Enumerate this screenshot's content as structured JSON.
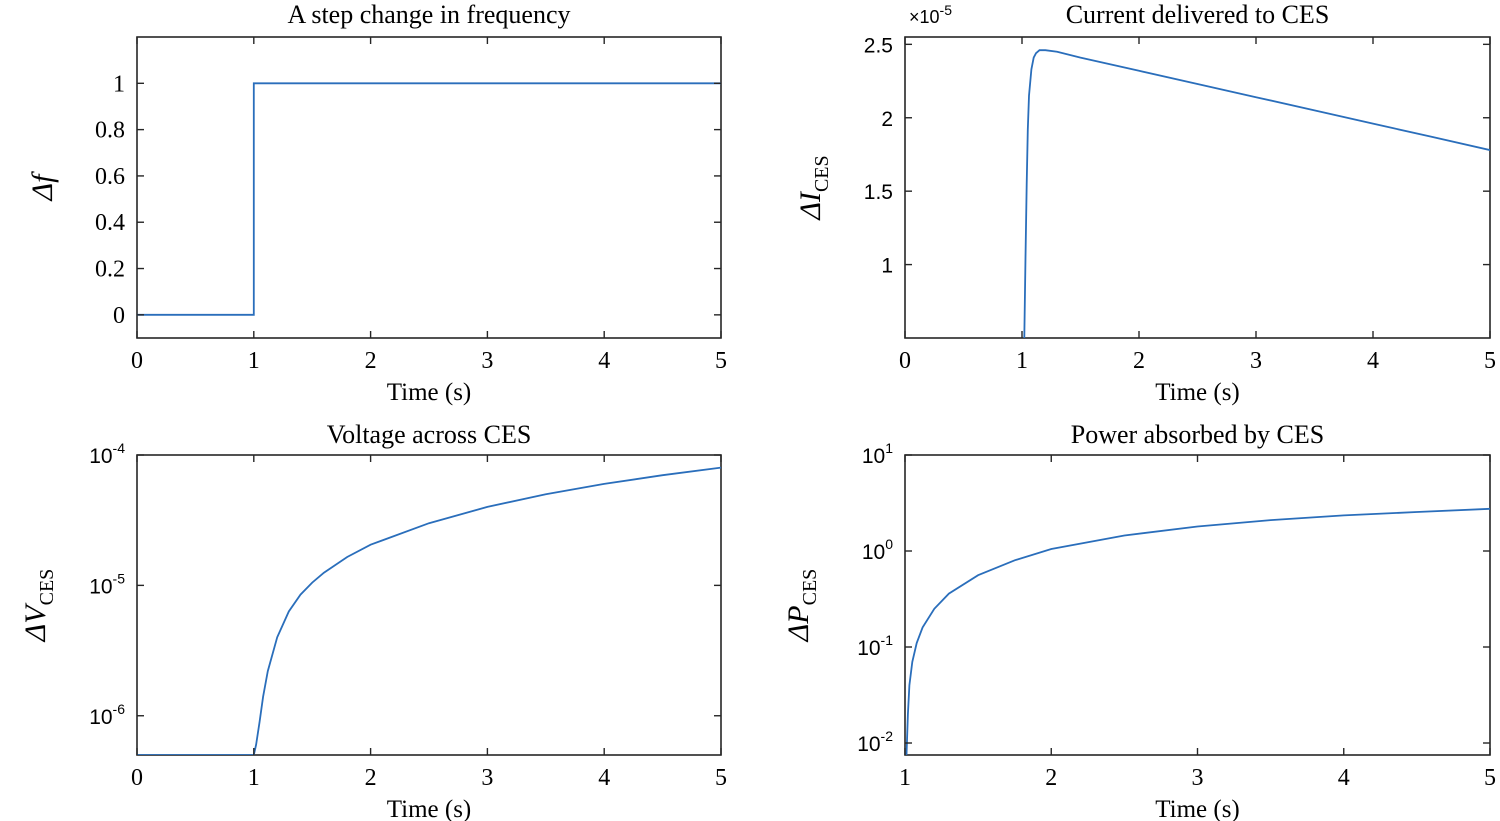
{
  "chart_data": [
    {
      "id": "freq",
      "type": "line",
      "title": "A step change in frequency",
      "xlabel": "Time (s)",
      "ylabel": "Δf",
      "ylabel_sub": "",
      "xscale": "linear",
      "yscale": "linear",
      "xlim": [
        0,
        5
      ],
      "ylim": [
        -0.1,
        1.2
      ],
      "xticks": [
        0,
        1,
        2,
        3,
        4,
        5
      ],
      "xtick_labels": [
        "0",
        "1",
        "2",
        "3",
        "4",
        "5"
      ],
      "yticks": [
        0,
        0.2,
        0.4,
        0.6,
        0.8,
        1
      ],
      "ytick_labels": [
        "0",
        "0.2",
        "0.4",
        "0.6",
        "0.8",
        "1"
      ],
      "scale_note": "",
      "tick_font": "serif",
      "series": [
        {
          "name": "Δf",
          "x": [
            0,
            1,
            1,
            5
          ],
          "y": [
            0,
            0,
            1,
            1
          ]
        }
      ]
    },
    {
      "id": "current",
      "type": "line",
      "title": "Current delivered to CES",
      "xlabel": "Time (s)",
      "ylabel": "ΔI",
      "ylabel_sub": "CES",
      "xscale": "linear",
      "yscale": "linear",
      "xlim": [
        0,
        5
      ],
      "ylim": [
        0.5,
        2.55
      ],
      "xticks": [
        0,
        1,
        2,
        3,
        4,
        5
      ],
      "xtick_labels": [
        "0",
        "1",
        "2",
        "3",
        "4",
        "5"
      ],
      "yticks": [
        1,
        1.5,
        2,
        2.5
      ],
      "ytick_labels": [
        "1",
        "1.5",
        "2",
        "2.5"
      ],
      "scale_note": "×10",
      "scale_exp": "-5",
      "tick_font": "sans",
      "series": [
        {
          "name": "ΔI CES (×10^-5)",
          "x": [
            1.02,
            1.03,
            1.04,
            1.05,
            1.06,
            1.08,
            1.1,
            1.12,
            1.15,
            1.2,
            1.3,
            1.5,
            2,
            2.5,
            3,
            3.5,
            4,
            4.5,
            5
          ],
          "y": [
            0.5,
            1.05,
            1.55,
            1.92,
            2.15,
            2.33,
            2.41,
            2.44,
            2.46,
            2.46,
            2.45,
            2.41,
            2.32,
            2.23,
            2.14,
            2.05,
            1.96,
            1.87,
            1.78
          ]
        }
      ]
    },
    {
      "id": "voltage",
      "type": "line",
      "title": "Voltage across CES",
      "xlabel": "Time (s)",
      "ylabel": "ΔV",
      "ylabel_sub": "CES",
      "xscale": "linear",
      "yscale": "log",
      "xlim": [
        0,
        5
      ],
      "ylim": [
        5e-07,
        0.0001
      ],
      "xticks": [
        0,
        1,
        2,
        3,
        4,
        5
      ],
      "xtick_labels": [
        "0",
        "1",
        "2",
        "3",
        "4",
        "5"
      ],
      "yticks": [
        1e-06,
        1e-05,
        0.0001
      ],
      "ytick_labels": [
        {
          "base": "10",
          "exp": "-6"
        },
        {
          "base": "10",
          "exp": "-5"
        },
        {
          "base": "10",
          "exp": "-4"
        }
      ],
      "scale_note": "",
      "tick_font": "sans",
      "series": [
        {
          "name": "ΔV CES",
          "x": [
            0,
            1,
            1.02,
            1.05,
            1.08,
            1.12,
            1.2,
            1.3,
            1.4,
            1.5,
            1.6,
            1.8,
            2,
            2.5,
            3,
            3.5,
            4,
            4.5,
            5
          ],
          "y": [
            5e-07,
            5e-07,
            6e-07,
            9e-07,
            1.4e-06,
            2.2e-06,
            4e-06,
            6.3e-06,
            8.5e-06,
            1.05e-05,
            1.25e-05,
            1.65e-05,
            2.05e-05,
            3e-05,
            4e-05,
            5e-05,
            6e-05,
            7e-05,
            8e-05
          ]
        }
      ]
    },
    {
      "id": "power",
      "type": "line",
      "title": "Power absorbed by CES",
      "xlabel": "Time (s)",
      "ylabel": "ΔP",
      "ylabel_sub": "CES",
      "xscale": "linear",
      "yscale": "log",
      "xlim": [
        1,
        5
      ],
      "ylim": [
        0.0075,
        10
      ],
      "xticks": [
        1,
        2,
        3,
        4,
        5
      ],
      "xtick_labels": [
        "1",
        "2",
        "3",
        "4",
        "5"
      ],
      "yticks": [
        0.01,
        0.1,
        1,
        10
      ],
      "ytick_labels": [
        {
          "base": "10",
          "exp": "-2"
        },
        {
          "base": "10",
          "exp": "-1"
        },
        {
          "base": "10",
          "exp": "0"
        },
        {
          "base": "10",
          "exp": "1"
        }
      ],
      "scale_note": "",
      "tick_font": "sans",
      "series": [
        {
          "name": "ΔP CES",
          "x": [
            1.01,
            1.02,
            1.03,
            1.05,
            1.08,
            1.12,
            1.2,
            1.3,
            1.5,
            1.75,
            2,
            2.5,
            3,
            3.5,
            4,
            4.5,
            5
          ],
          "y": [
            0.0075,
            0.02,
            0.04,
            0.07,
            0.11,
            0.16,
            0.25,
            0.36,
            0.56,
            0.8,
            1.05,
            1.45,
            1.8,
            2.1,
            2.35,
            2.55,
            2.75
          ]
        }
      ]
    }
  ]
}
